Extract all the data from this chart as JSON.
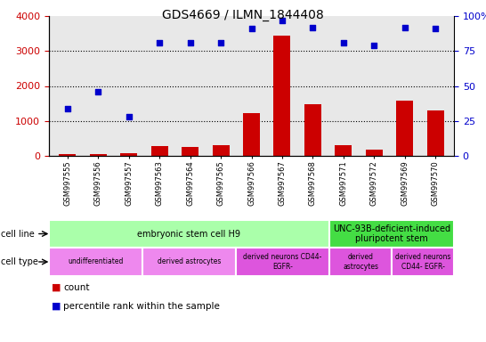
{
  "title": "GDS4669 / ILMN_1844408",
  "samples": [
    "GSM997555",
    "GSM997556",
    "GSM997557",
    "GSM997563",
    "GSM997564",
    "GSM997565",
    "GSM997566",
    "GSM997567",
    "GSM997568",
    "GSM997571",
    "GSM997572",
    "GSM997569",
    "GSM997570"
  ],
  "counts": [
    50,
    60,
    80,
    270,
    260,
    310,
    1220,
    3450,
    1480,
    295,
    185,
    1570,
    1310
  ],
  "percentile": [
    34,
    46,
    28,
    81,
    81,
    81,
    91,
    97,
    92,
    81,
    79,
    92,
    91
  ],
  "ylim_left": [
    0,
    4000
  ],
  "ylim_right": [
    0,
    100
  ],
  "yticks_left": [
    0,
    1000,
    2000,
    3000,
    4000
  ],
  "yticks_right": [
    0,
    25,
    50,
    75,
    100
  ],
  "bar_color": "#cc0000",
  "dot_color": "#0000cc",
  "cell_line_groups": [
    {
      "label": "embryonic stem cell H9",
      "start": 0,
      "end": 8,
      "color": "#aaffaa"
    },
    {
      "label": "UNC-93B-deficient-induced\npluripotent stem",
      "start": 9,
      "end": 12,
      "color": "#44dd44"
    }
  ],
  "cell_type_groups": [
    {
      "label": "undifferentiated",
      "start": 0,
      "end": 2,
      "color": "#ee88ee"
    },
    {
      "label": "derived astrocytes",
      "start": 3,
      "end": 5,
      "color": "#ee88ee"
    },
    {
      "label": "derived neurons CD44-\nEGFR-",
      "start": 6,
      "end": 8,
      "color": "#dd55dd"
    },
    {
      "label": "derived\nastrocytes",
      "start": 9,
      "end": 10,
      "color": "#dd55dd"
    },
    {
      "label": "derived neurons\nCD44- EGFR-",
      "start": 11,
      "end": 12,
      "color": "#dd55dd"
    }
  ],
  "bg_color": "#ffffff",
  "axis_bg_color": "#e8e8e8",
  "grid_dotted_color": "#000000",
  "left_tick_color": "#cc0000",
  "right_tick_color": "#0000cc",
  "group_dividers": [
    2.5,
    5.5,
    8.5
  ],
  "legend_count_color": "#cc0000",
  "legend_dot_color": "#0000cc"
}
